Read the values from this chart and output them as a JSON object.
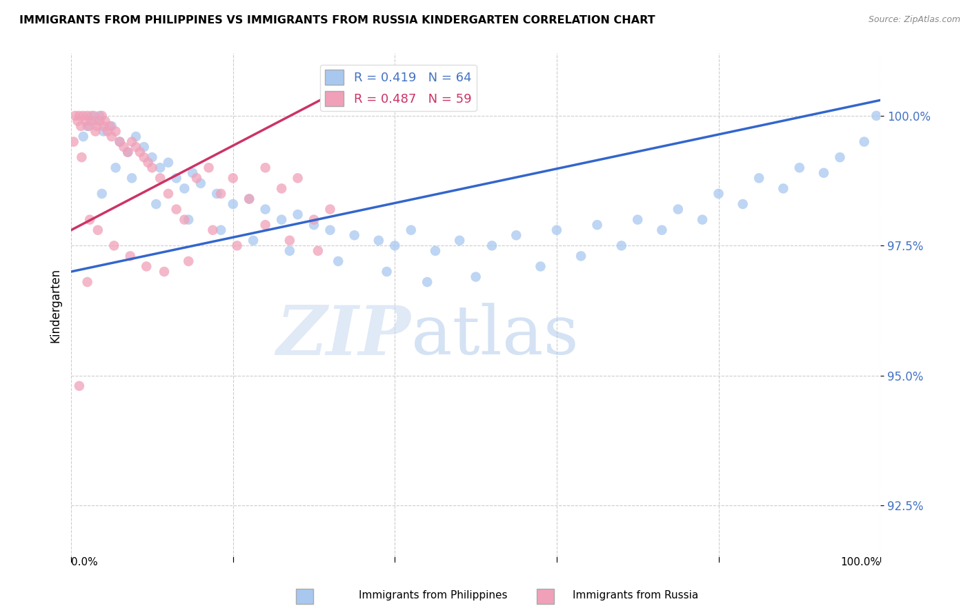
{
  "title": "IMMIGRANTS FROM PHILIPPINES VS IMMIGRANTS FROM RUSSIA KINDERGARTEN CORRELATION CHART",
  "source": "Source: ZipAtlas.com",
  "ylabel": "Kindergarten",
  "ytick_values": [
    92.5,
    95.0,
    97.5,
    100.0
  ],
  "xlim": [
    0.0,
    100.0
  ],
  "ylim": [
    91.5,
    101.2
  ],
  "legend_blue_label": "R = 0.419   N = 64",
  "legend_pink_label": "R = 0.487   N = 59",
  "blue_color": "#A8C8F0",
  "pink_color": "#F0A0B8",
  "blue_line_color": "#3366CC",
  "pink_line_color": "#CC3366",
  "watermark_zip": "ZIP",
  "watermark_atlas": "atlas",
  "blue_line_x0": 0.0,
  "blue_line_y0": 97.0,
  "blue_line_x1": 100.0,
  "blue_line_y1": 100.3,
  "pink_line_x0": 0.0,
  "pink_line_y0": 97.8,
  "pink_line_x1": 32.0,
  "pink_line_y1": 100.4,
  "blue_scatter_x": [
    1.5,
    2.0,
    2.5,
    3.0,
    3.5,
    4.0,
    5.0,
    6.0,
    7.0,
    8.0,
    9.0,
    10.0,
    11.0,
    12.0,
    13.0,
    14.0,
    15.0,
    16.0,
    18.0,
    20.0,
    22.0,
    24.0,
    26.0,
    28.0,
    30.0,
    32.0,
    35.0,
    38.0,
    40.0,
    42.0,
    45.0,
    48.0,
    52.0,
    55.0,
    60.0,
    65.0,
    70.0,
    75.0,
    80.0,
    85.0,
    90.0,
    95.0,
    98.0,
    99.5,
    3.8,
    5.5,
    7.5,
    10.5,
    14.5,
    18.5,
    22.5,
    27.0,
    33.0,
    39.0,
    44.0,
    50.0,
    58.0,
    63.0,
    68.0,
    73.0,
    78.0,
    83.0,
    88.0,
    93.0
  ],
  "blue_scatter_y": [
    99.6,
    99.8,
    100.0,
    99.9,
    100.0,
    99.7,
    99.8,
    99.5,
    99.3,
    99.6,
    99.4,
    99.2,
    99.0,
    99.1,
    98.8,
    98.6,
    98.9,
    98.7,
    98.5,
    98.3,
    98.4,
    98.2,
    98.0,
    98.1,
    97.9,
    97.8,
    97.7,
    97.6,
    97.5,
    97.8,
    97.4,
    97.6,
    97.5,
    97.7,
    97.8,
    97.9,
    98.0,
    98.2,
    98.5,
    98.8,
    99.0,
    99.2,
    99.5,
    100.0,
    98.5,
    99.0,
    98.8,
    98.3,
    98.0,
    97.8,
    97.6,
    97.4,
    97.2,
    97.0,
    96.8,
    96.9,
    97.1,
    97.3,
    97.5,
    97.8,
    98.0,
    98.3,
    98.6,
    98.9
  ],
  "pink_scatter_x": [
    0.5,
    0.8,
    1.0,
    1.2,
    1.5,
    1.8,
    2.0,
    2.2,
    2.5,
    2.8,
    3.0,
    3.2,
    3.5,
    3.8,
    4.0,
    4.2,
    4.5,
    4.8,
    5.0,
    5.5,
    6.0,
    6.5,
    7.0,
    7.5,
    8.0,
    8.5,
    9.0,
    9.5,
    10.0,
    11.0,
    12.0,
    13.0,
    14.0,
    15.5,
    17.0,
    18.5,
    20.0,
    22.0,
    24.0,
    26.0,
    28.0,
    30.0,
    32.0,
    0.3,
    1.3,
    2.3,
    3.3,
    5.3,
    7.3,
    9.3,
    11.5,
    14.5,
    17.5,
    20.5,
    24.0,
    27.0,
    30.5,
    1.0,
    2.0
  ],
  "pink_scatter_y": [
    100.0,
    99.9,
    100.0,
    99.8,
    100.0,
    99.9,
    100.0,
    99.8,
    99.9,
    100.0,
    99.7,
    99.8,
    99.9,
    100.0,
    99.8,
    99.9,
    99.7,
    99.8,
    99.6,
    99.7,
    99.5,
    99.4,
    99.3,
    99.5,
    99.4,
    99.3,
    99.2,
    99.1,
    99.0,
    98.8,
    98.5,
    98.2,
    98.0,
    98.8,
    99.0,
    98.5,
    98.8,
    98.4,
    99.0,
    98.6,
    98.8,
    98.0,
    98.2,
    99.5,
    99.2,
    98.0,
    97.8,
    97.5,
    97.3,
    97.1,
    97.0,
    97.2,
    97.8,
    97.5,
    97.9,
    97.6,
    97.4,
    94.8,
    96.8
  ]
}
